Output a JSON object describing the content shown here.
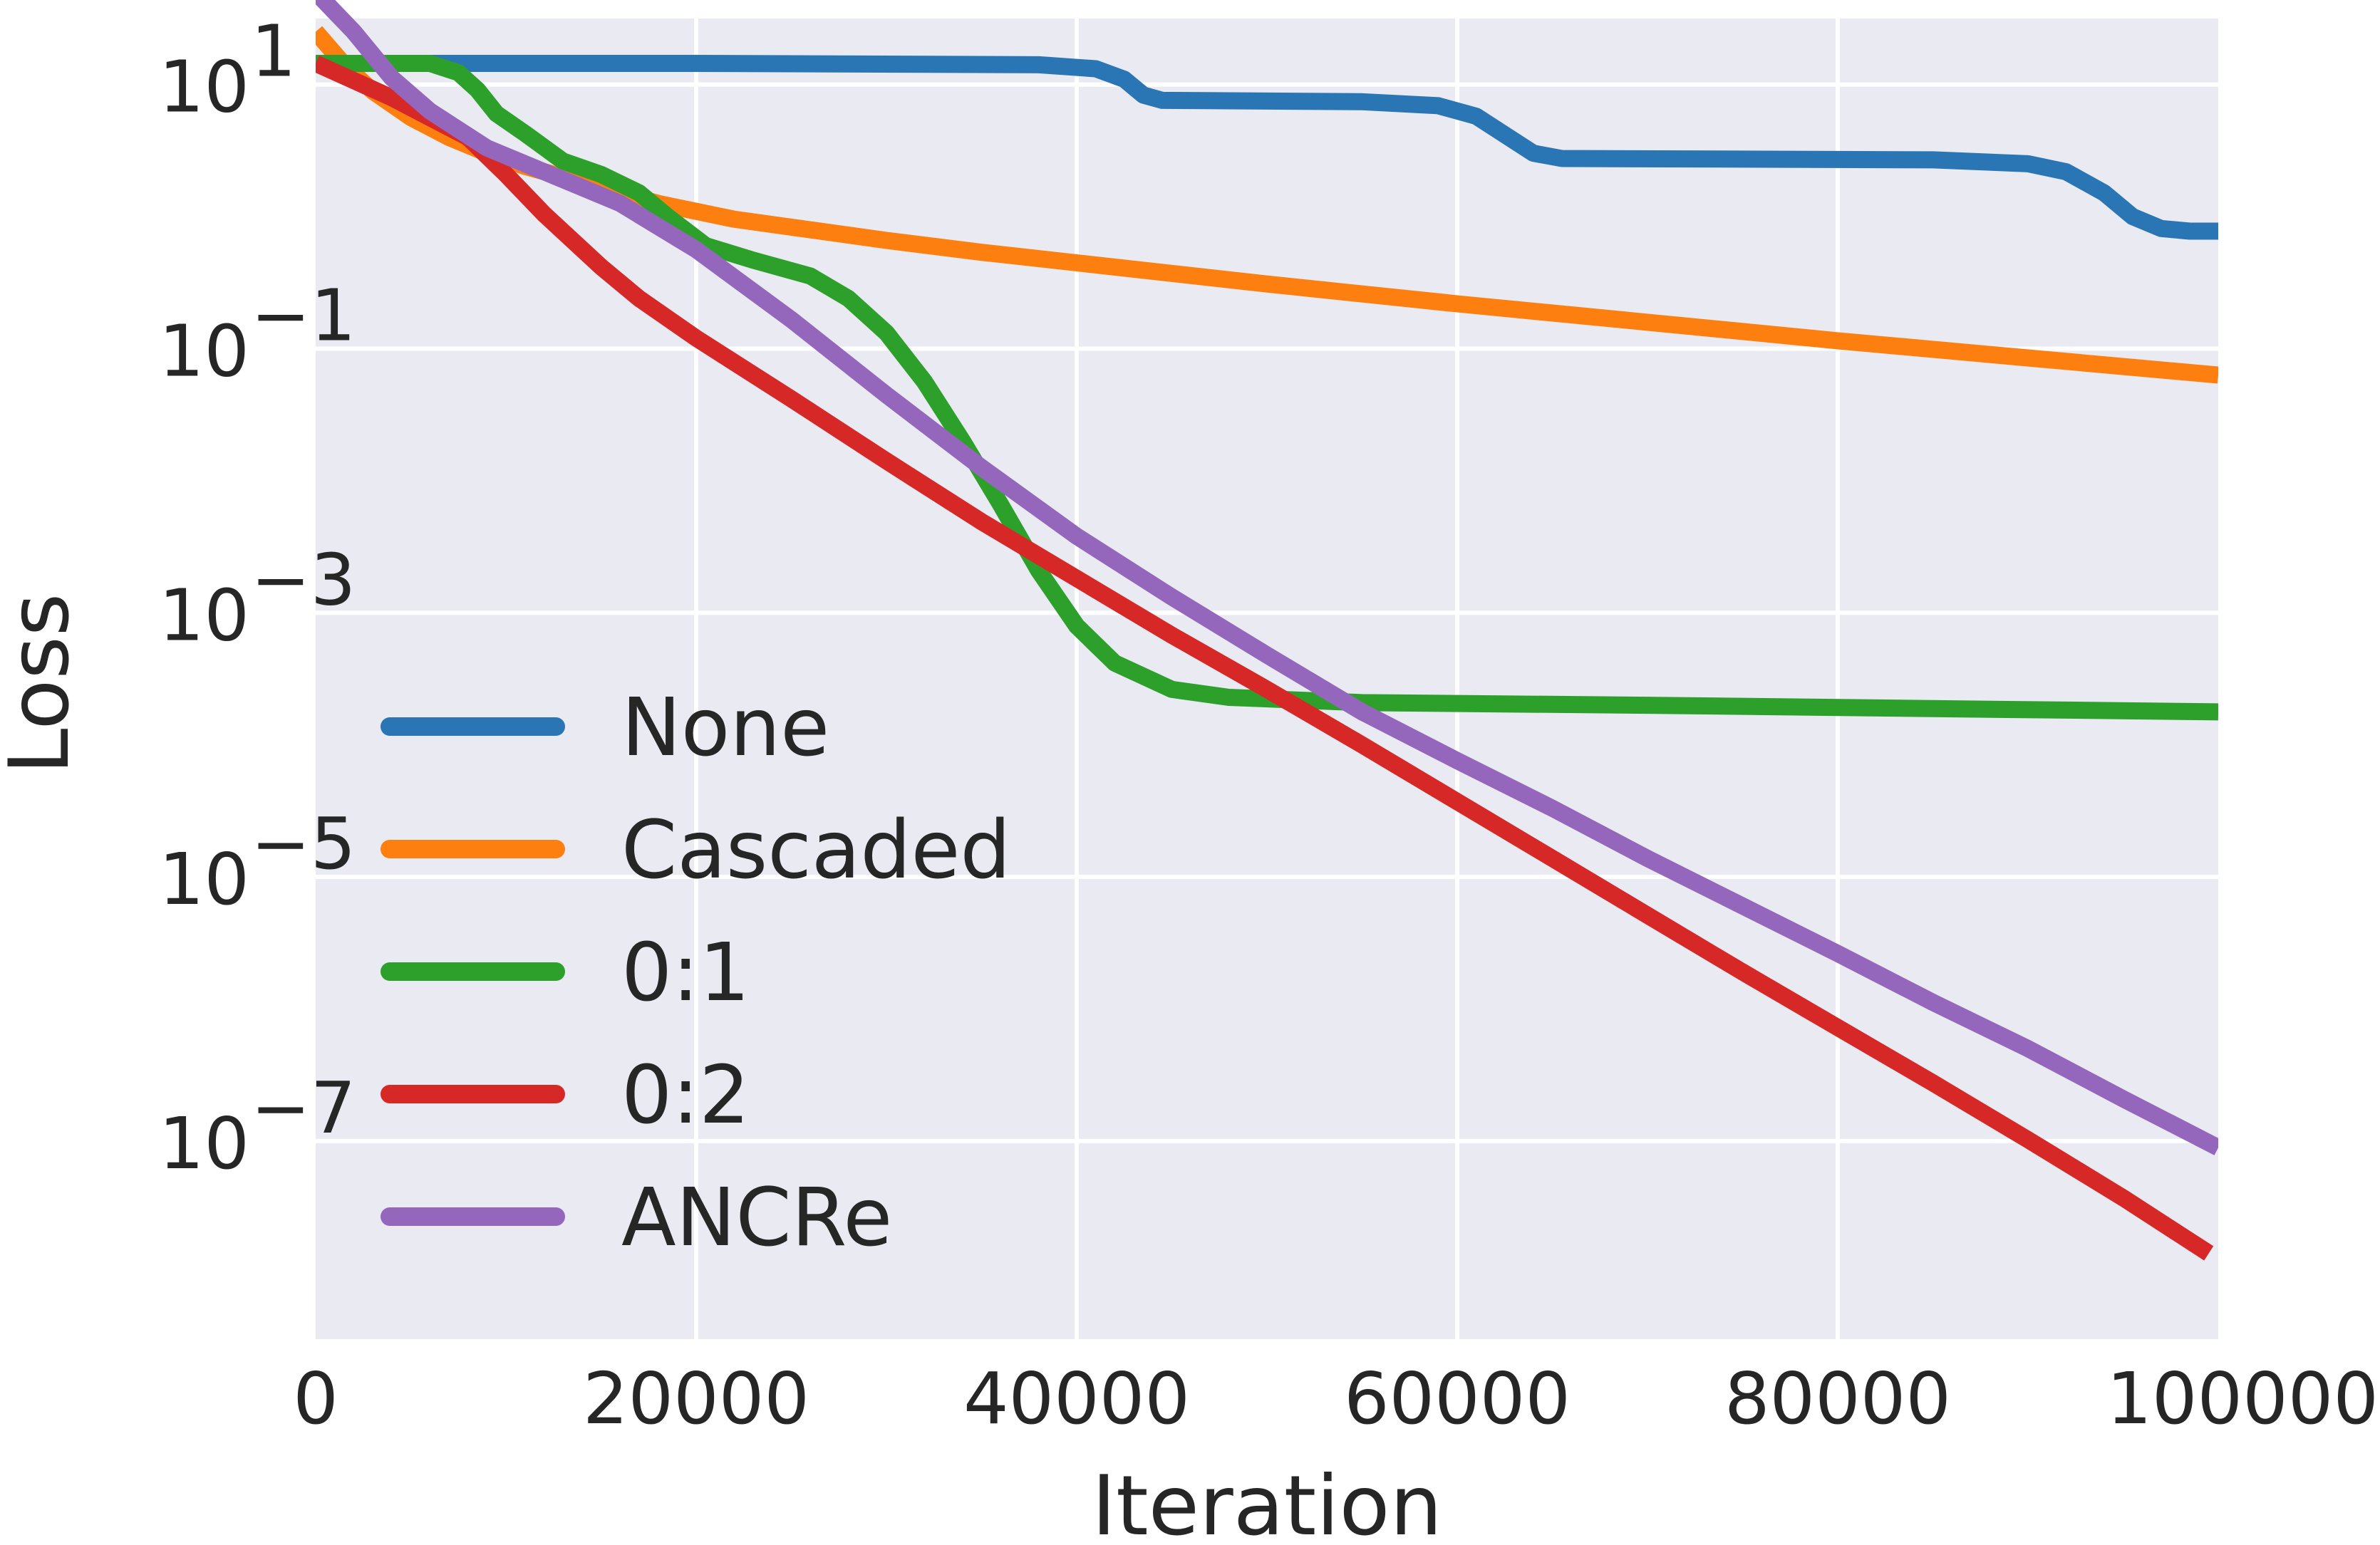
{
  "chart_data": {
    "type": "line",
    "title": "",
    "xlabel": "Iteration",
    "ylabel": "Loss",
    "xscale": "linear",
    "yscale": "log",
    "xlim": [
      0,
      100000
    ],
    "ylim_log10": [
      -8.5,
      1.5
    ],
    "x_ticks": [
      {
        "value": 0,
        "label": "0"
      },
      {
        "value": 20000,
        "label": "20000"
      },
      {
        "value": 40000,
        "label": "40000"
      },
      {
        "value": 60000,
        "label": "60000"
      },
      {
        "value": 80000,
        "label": "80000"
      },
      {
        "value": 100000,
        "label": "100000"
      }
    ],
    "y_ticks": [
      {
        "log10": 1,
        "base": "10",
        "exp": "1"
      },
      {
        "log10": -1,
        "base": "10",
        "exp": "−1"
      },
      {
        "log10": -3,
        "base": "10",
        "exp": "−3"
      },
      {
        "log10": -5,
        "base": "10",
        "exp": "−5"
      },
      {
        "log10": -7,
        "base": "10",
        "exp": "−7"
      }
    ],
    "grid": true,
    "legend_position": "lower-left",
    "series": [
      {
        "name": "None",
        "color": "#2a76b4",
        "points_log10": [
          [
            0,
            1.16
          ],
          [
            20000,
            1.16
          ],
          [
            38000,
            1.15
          ],
          [
            41000,
            1.12
          ],
          [
            42500,
            1.04
          ],
          [
            43500,
            0.92
          ],
          [
            44500,
            0.88
          ],
          [
            55000,
            0.87
          ],
          [
            59000,
            0.84
          ],
          [
            61000,
            0.76
          ],
          [
            62500,
            0.62
          ],
          [
            64000,
            0.48
          ],
          [
            65500,
            0.44
          ],
          [
            85000,
            0.43
          ],
          [
            90000,
            0.4
          ],
          [
            92000,
            0.34
          ],
          [
            94000,
            0.18
          ],
          [
            95500,
            0.0
          ],
          [
            97000,
            -0.09
          ],
          [
            98500,
            -0.11
          ],
          [
            100000,
            -0.11
          ]
        ]
      },
      {
        "name": "Cascaded",
        "color": "#fd7f0f",
        "points_log10": [
          [
            0,
            1.4
          ],
          [
            1500,
            1.15
          ],
          [
            3000,
            0.95
          ],
          [
            5000,
            0.75
          ],
          [
            7000,
            0.6
          ],
          [
            9000,
            0.48
          ],
          [
            11000,
            0.38
          ],
          [
            14000,
            0.26
          ],
          [
            18000,
            0.1
          ],
          [
            22000,
            -0.02
          ],
          [
            26000,
            -0.1
          ],
          [
            30000,
            -0.18
          ],
          [
            35000,
            -0.27
          ],
          [
            40000,
            -0.35
          ],
          [
            50000,
            -0.51
          ],
          [
            60000,
            -0.66
          ],
          [
            70000,
            -0.8
          ],
          [
            80000,
            -0.94
          ],
          [
            90000,
            -1.07
          ],
          [
            100000,
            -1.2
          ]
        ]
      },
      {
        "name": "0:1",
        "color": "#2da02b",
        "points_log10": [
          [
            0,
            1.16
          ],
          [
            6000,
            1.16
          ],
          [
            7500,
            1.09
          ],
          [
            8500,
            0.96
          ],
          [
            9500,
            0.78
          ],
          [
            11000,
            0.63
          ],
          [
            13000,
            0.42
          ],
          [
            15000,
            0.32
          ],
          [
            17000,
            0.18
          ],
          [
            18500,
            0.0
          ],
          [
            20500,
            -0.22
          ],
          [
            23000,
            -0.33
          ],
          [
            26000,
            -0.45
          ],
          [
            28000,
            -0.62
          ],
          [
            30000,
            -0.88
          ],
          [
            32000,
            -1.25
          ],
          [
            34000,
            -1.7
          ],
          [
            36000,
            -2.18
          ],
          [
            38000,
            -2.68
          ],
          [
            40000,
            -3.1
          ],
          [
            42000,
            -3.38
          ],
          [
            45000,
            -3.58
          ],
          [
            48000,
            -3.64
          ],
          [
            55000,
            -3.68
          ],
          [
            70000,
            -3.7
          ],
          [
            100000,
            -3.75
          ]
        ]
      },
      {
        "name": "0:2",
        "color": "#d62826",
        "points_log10": [
          [
            0,
            1.16
          ],
          [
            4000,
            0.9
          ],
          [
            8000,
            0.6
          ],
          [
            10000,
            0.32
          ],
          [
            12000,
            0.02
          ],
          [
            15000,
            -0.38
          ],
          [
            17000,
            -0.62
          ],
          [
            20000,
            -0.92
          ],
          [
            25000,
            -1.38
          ],
          [
            30000,
            -1.85
          ],
          [
            35000,
            -2.31
          ],
          [
            40000,
            -2.74
          ],
          [
            45000,
            -3.17
          ],
          [
            50000,
            -3.58
          ],
          [
            55000,
            -4.0
          ],
          [
            60000,
            -4.43
          ],
          [
            65000,
            -4.86
          ],
          [
            70000,
            -5.29
          ],
          [
            75000,
            -5.72
          ],
          [
            80000,
            -6.14
          ],
          [
            85000,
            -6.56
          ],
          [
            90000,
            -6.99
          ],
          [
            95000,
            -7.43
          ],
          [
            99500,
            -7.85
          ]
        ]
      },
      {
        "name": "ANCRe",
        "color": "#9467bd",
        "points_log10": [
          [
            0,
            1.7
          ],
          [
            2000,
            1.4
          ],
          [
            4000,
            1.05
          ],
          [
            6000,
            0.8
          ],
          [
            9000,
            0.52
          ],
          [
            13000,
            0.28
          ],
          [
            16000,
            0.1
          ],
          [
            20000,
            -0.25
          ],
          [
            25000,
            -0.78
          ],
          [
            30000,
            -1.35
          ],
          [
            35000,
            -1.9
          ],
          [
            40000,
            -2.42
          ],
          [
            45000,
            -2.88
          ],
          [
            50000,
            -3.32
          ],
          [
            55000,
            -3.75
          ],
          [
            60000,
            -4.12
          ],
          [
            65000,
            -4.48
          ],
          [
            70000,
            -4.86
          ],
          [
            75000,
            -5.22
          ],
          [
            80000,
            -5.58
          ],
          [
            85000,
            -5.95
          ],
          [
            90000,
            -6.3
          ],
          [
            95000,
            -6.68
          ],
          [
            100000,
            -7.05
          ]
        ]
      }
    ]
  }
}
